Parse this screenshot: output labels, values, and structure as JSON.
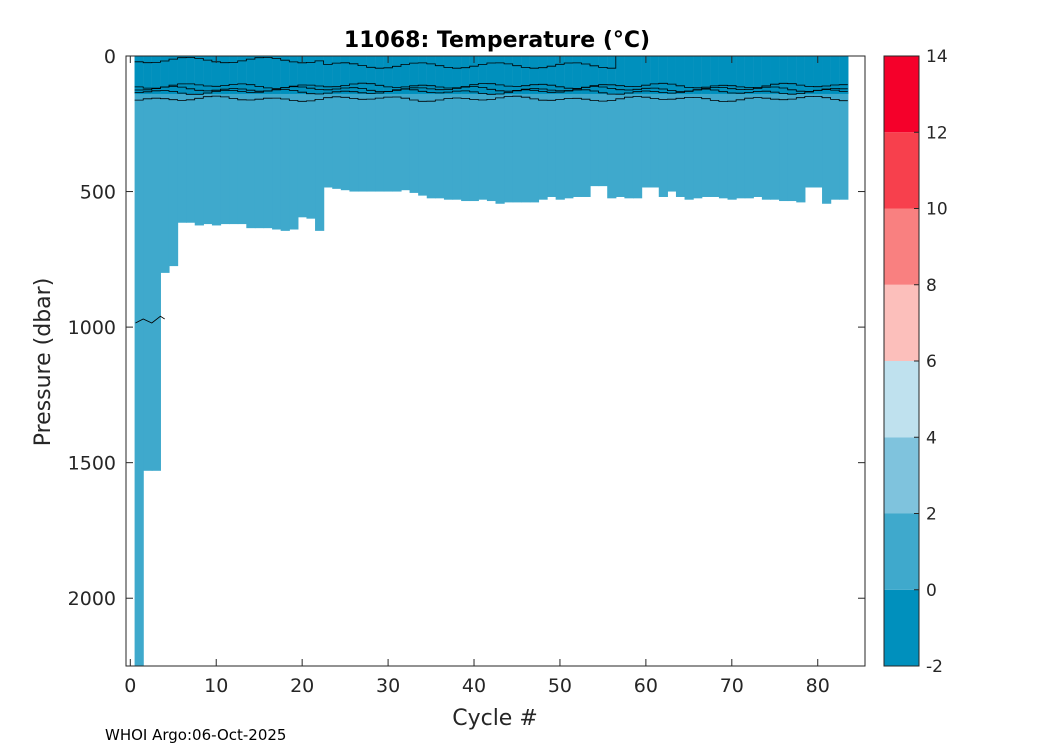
{
  "chart_data": {
    "type": "heatmap",
    "title": "11068:  Temperature (°C)",
    "xlabel": "Cycle #",
    "ylabel": "Pressure (dbar)",
    "xlim": [
      -0.5,
      85.5
    ],
    "ylim": [
      0,
      2250
    ],
    "y_reversed": true,
    "xticks": [
      0,
      10,
      20,
      30,
      40,
      50,
      60,
      70,
      80
    ],
    "yticks": [
      0,
      500,
      1000,
      1500,
      2000
    ],
    "colorbar": {
      "range": [
        -2,
        14
      ],
      "ticks": [
        -2,
        0,
        2,
        4,
        6,
        8,
        10,
        12,
        14
      ],
      "levels": [
        {
          "from": -2,
          "to": 0,
          "color": "#0090bd"
        },
        {
          "from": 0,
          "to": 2,
          "color": "#3fa9cc"
        },
        {
          "from": 2,
          "to": 4,
          "color": "#7fc3dd"
        },
        {
          "from": 4,
          "to": 6,
          "color": "#bfe1ee"
        },
        {
          "from": 6,
          "to": 8,
          "color": "#fcbfbb"
        },
        {
          "from": 8,
          "to": 10,
          "color": "#f98080"
        },
        {
          "from": 10,
          "to": 12,
          "color": "#f7404d"
        },
        {
          "from": 12,
          "to": 14,
          "color": "#f5002a"
        }
      ]
    },
    "max_depth_per_cycle": [
      [
        1,
        2250
      ],
      [
        2,
        1530
      ],
      [
        3,
        1530
      ],
      [
        4,
        800
      ],
      [
        5,
        775
      ],
      [
        6,
        615
      ],
      [
        7,
        615
      ],
      [
        8,
        625
      ],
      [
        9,
        620
      ],
      [
        10,
        625
      ],
      [
        11,
        620
      ],
      [
        12,
        620
      ],
      [
        13,
        620
      ],
      [
        14,
        635
      ],
      [
        15,
        635
      ],
      [
        16,
        635
      ],
      [
        17,
        640
      ],
      [
        18,
        645
      ],
      [
        19,
        640
      ],
      [
        20,
        595
      ],
      [
        21,
        600
      ],
      [
        22,
        645
      ],
      [
        23,
        485
      ],
      [
        24,
        490
      ],
      [
        25,
        495
      ],
      [
        26,
        500
      ],
      [
        27,
        500
      ],
      [
        28,
        500
      ],
      [
        29,
        500
      ],
      [
        30,
        500
      ],
      [
        31,
        500
      ],
      [
        32,
        495
      ],
      [
        33,
        505
      ],
      [
        34,
        515
      ],
      [
        35,
        525
      ],
      [
        36,
        525
      ],
      [
        37,
        530
      ],
      [
        38,
        530
      ],
      [
        39,
        535
      ],
      [
        40,
        535
      ],
      [
        41,
        530
      ],
      [
        42,
        535
      ],
      [
        43,
        545
      ],
      [
        44,
        540
      ],
      [
        45,
        540
      ],
      [
        46,
        540
      ],
      [
        47,
        540
      ],
      [
        48,
        530
      ],
      [
        49,
        520
      ],
      [
        50,
        530
      ],
      [
        51,
        525
      ],
      [
        52,
        520
      ],
      [
        53,
        520
      ],
      [
        54,
        480
      ],
      [
        55,
        480
      ],
      [
        56,
        525
      ],
      [
        57,
        520
      ],
      [
        58,
        525
      ],
      [
        59,
        525
      ],
      [
        60,
        485
      ],
      [
        61,
        485
      ],
      [
        62,
        520
      ],
      [
        63,
        500
      ],
      [
        64,
        520
      ],
      [
        65,
        530
      ],
      [
        66,
        525
      ],
      [
        67,
        520
      ],
      [
        68,
        520
      ],
      [
        69,
        525
      ],
      [
        70,
        530
      ],
      [
        71,
        525
      ],
      [
        72,
        525
      ],
      [
        73,
        520
      ],
      [
        74,
        530
      ],
      [
        75,
        530
      ],
      [
        76,
        535
      ],
      [
        77,
        535
      ],
      [
        78,
        540
      ],
      [
        79,
        485
      ],
      [
        80,
        485
      ],
      [
        81,
        545
      ],
      [
        82,
        530
      ],
      [
        83,
        530
      ]
    ],
    "cold_layer_bottom_dbar": 140,
    "contour_levels_degC": [
      0,
      0.5,
      1
    ]
  },
  "footer": "WHOI Argo:06-Oct-2025"
}
